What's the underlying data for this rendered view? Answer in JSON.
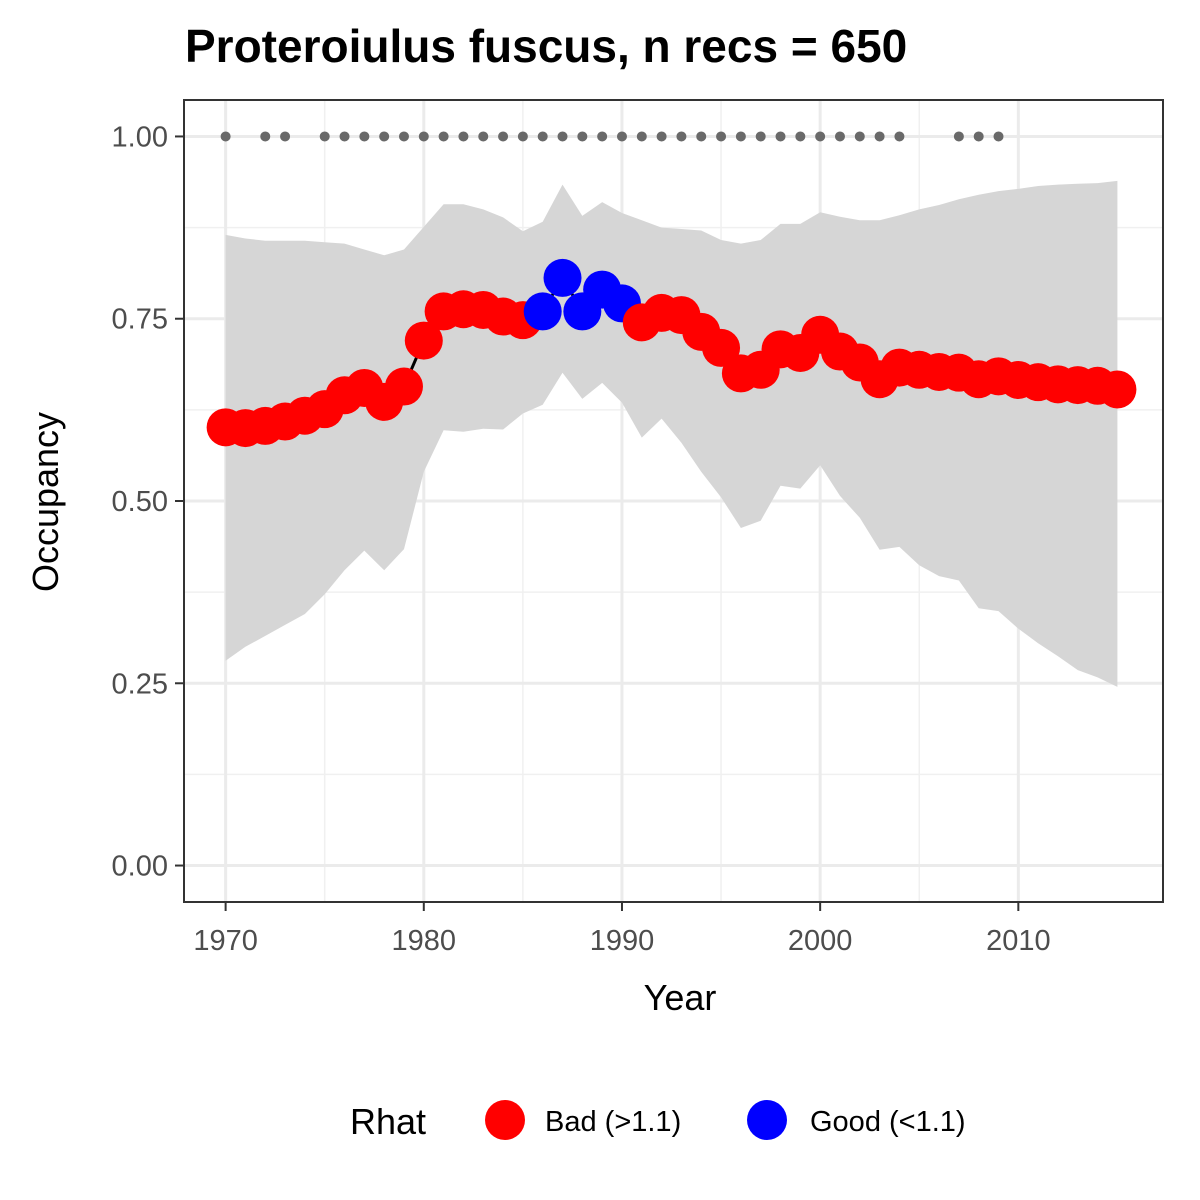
{
  "chart_data": {
    "type": "line",
    "title": "Proteroiulus fuscus, n recs = 650",
    "xlabel": "Year",
    "ylabel": "Occupancy",
    "xlim": [
      1967.9,
      2017.3
    ],
    "ylim": [
      -0.05,
      1.05
    ],
    "x_ticks": [
      1970,
      1980,
      1990,
      2000,
      2010
    ],
    "x_tick_labels": [
      "1970",
      "1980",
      "1990",
      "2000",
      "2010"
    ],
    "y_ticks": [
      0,
      0.25,
      0.5,
      0.75,
      1.0
    ],
    "y_tick_labels": [
      "0.00",
      "0.25",
      "0.50",
      "0.75",
      "1.00"
    ],
    "grid": true,
    "legend": {
      "title": "Rhat",
      "position": "bottom",
      "entries": [
        {
          "label": "Bad (>1.1)",
          "color": "#ff0000"
        },
        {
          "label": "Good (<1.1)",
          "color": "#0000ff"
        }
      ]
    },
    "colors": {
      "bad": "#ff0000",
      "good": "#0000ff",
      "ribbon": "#d6d6d6",
      "line": "#000000",
      "record_dots": "#696969"
    },
    "x": [
      1970,
      1971,
      1972,
      1973,
      1974,
      1975,
      1976,
      1977,
      1978,
      1979,
      1980,
      1981,
      1982,
      1983,
      1984,
      1985,
      1986,
      1987,
      1988,
      1989,
      1990,
      1991,
      1992,
      1993,
      1994,
      1995,
      1996,
      1997,
      1998,
      1999,
      2000,
      2001,
      2002,
      2003,
      2004,
      2005,
      2006,
      2007,
      2008,
      2009,
      2010,
      2011,
      2012,
      2013,
      2014,
      2015
    ],
    "occupancy": [
      0.601,
      0.6,
      0.603,
      0.609,
      0.617,
      0.626,
      0.645,
      0.655,
      0.636,
      0.657,
      0.72,
      0.76,
      0.763,
      0.762,
      0.753,
      0.748,
      0.76,
      0.806,
      0.76,
      0.79,
      0.771,
      0.745,
      0.758,
      0.755,
      0.732,
      0.71,
      0.675,
      0.68,
      0.708,
      0.703,
      0.728,
      0.705,
      0.69,
      0.667,
      0.683,
      0.68,
      0.677,
      0.676,
      0.667,
      0.671,
      0.666,
      0.663,
      0.66,
      0.659,
      0.658,
      0.653
    ],
    "rhat": [
      "Bad",
      "Bad",
      "Bad",
      "Bad",
      "Bad",
      "Bad",
      "Bad",
      "Bad",
      "Bad",
      "Bad",
      "Bad",
      "Bad",
      "Bad",
      "Bad",
      "Bad",
      "Bad",
      "Good",
      "Good",
      "Good",
      "Good",
      "Good",
      "Bad",
      "Bad",
      "Bad",
      "Bad",
      "Bad",
      "Bad",
      "Bad",
      "Bad",
      "Bad",
      "Bad",
      "Bad",
      "Bad",
      "Bad",
      "Bad",
      "Bad",
      "Bad",
      "Bad",
      "Bad",
      "Bad",
      "Bad",
      "Bad",
      "Bad",
      "Bad",
      "Bad",
      "Bad"
    ],
    "upper_ci": [
      0.865,
      0.86,
      0.857,
      0.857,
      0.857,
      0.855,
      0.853,
      0.845,
      0.837,
      0.845,
      0.876,
      0.907,
      0.907,
      0.9,
      0.889,
      0.87,
      0.883,
      0.934,
      0.891,
      0.91,
      0.895,
      0.885,
      0.875,
      0.873,
      0.871,
      0.858,
      0.853,
      0.858,
      0.88,
      0.88,
      0.896,
      0.89,
      0.885,
      0.885,
      0.892,
      0.9,
      0.906,
      0.914,
      0.92,
      0.925,
      0.928,
      0.932,
      0.934,
      0.935,
      0.936,
      0.939
    ],
    "lower_ci": [
      0.281,
      0.3,
      0.315,
      0.33,
      0.345,
      0.372,
      0.405,
      0.432,
      0.405,
      0.434,
      0.54,
      0.597,
      0.595,
      0.599,
      0.598,
      0.62,
      0.632,
      0.676,
      0.64,
      0.662,
      0.635,
      0.587,
      0.613,
      0.58,
      0.54,
      0.505,
      0.463,
      0.473,
      0.521,
      0.517,
      0.549,
      0.507,
      0.477,
      0.433,
      0.437,
      0.412,
      0.397,
      0.391,
      0.353,
      0.349,
      0.325,
      0.305,
      0.287,
      0.268,
      0.258,
      0.245
    ],
    "record_years": [
      1970,
      1972,
      1973,
      1975,
      1976,
      1977,
      1978,
      1979,
      1980,
      1981,
      1982,
      1983,
      1984,
      1985,
      1986,
      1987,
      1988,
      1989,
      1990,
      1991,
      1992,
      1993,
      1994,
      1995,
      1996,
      1997,
      1998,
      1999,
      2000,
      2001,
      2002,
      2003,
      2004,
      2007,
      2008,
      2009
    ],
    "record_level": 1.0
  }
}
